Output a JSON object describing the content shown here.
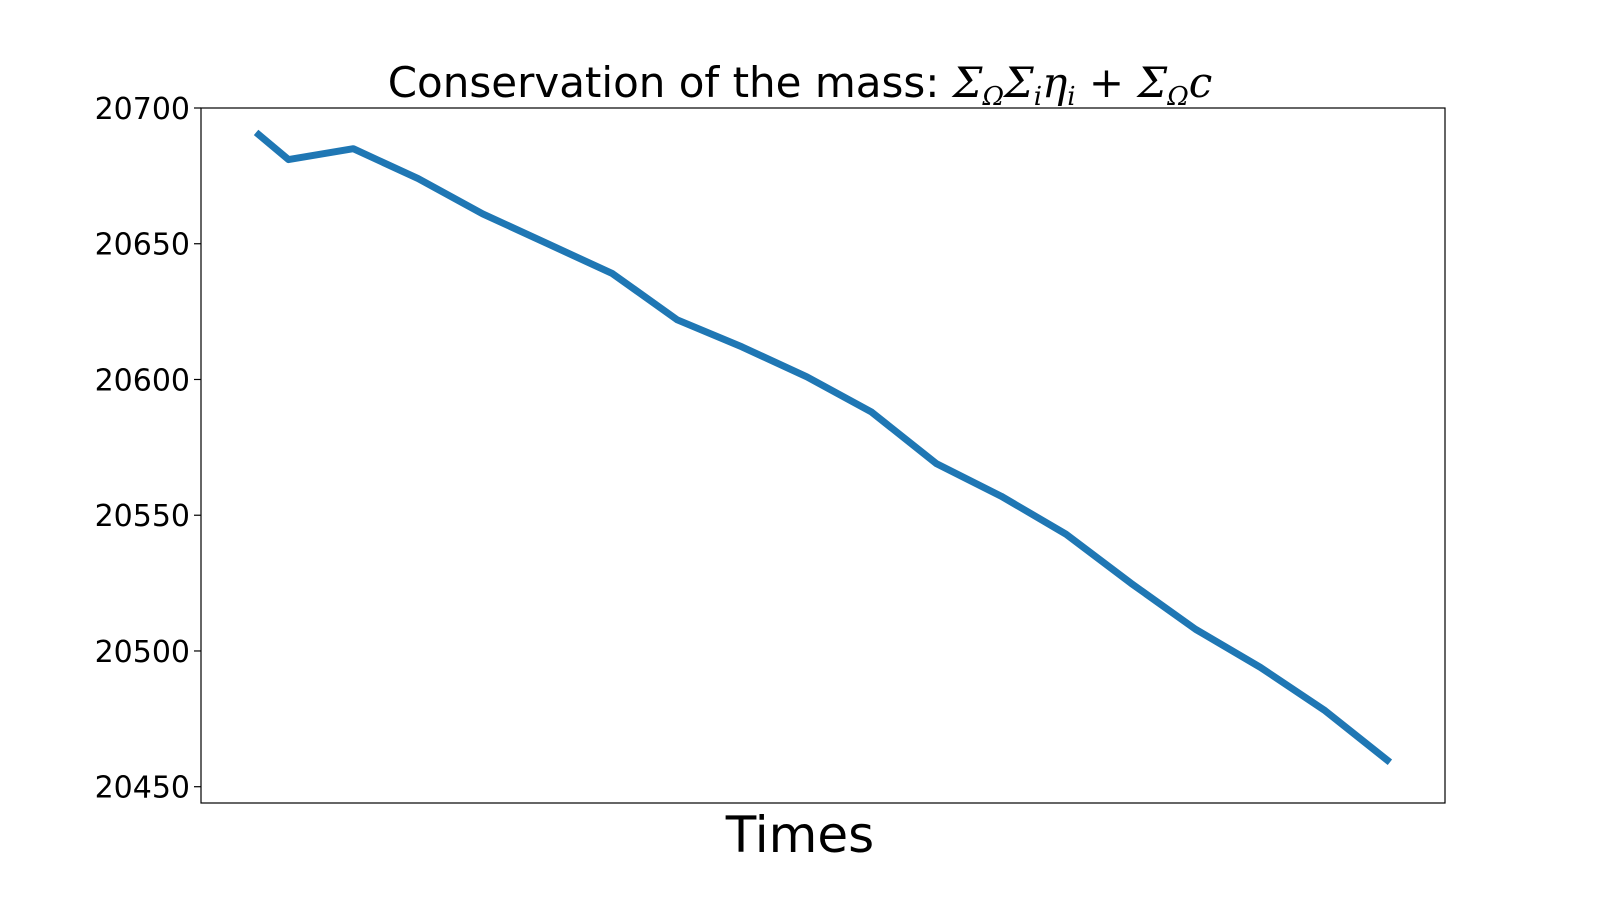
{
  "chart_data": {
    "type": "line",
    "title_text": "Conservation of the mass: ",
    "title_math": {
      "sigma": "Σ",
      "omega_sub": "Ω",
      "i_sub": "i",
      "eta": "η",
      "plus": "+",
      "c": "c"
    },
    "xlabel": "Times",
    "ylabel": "",
    "ylim": [
      20444,
      20700
    ],
    "yticks": [
      "20450",
      "20500",
      "20550",
      "20600",
      "20650",
      "20700"
    ],
    "x": [
      0,
      0.5,
      1.5,
      2.5,
      3.5,
      4.5,
      5.5,
      6.5,
      7.5,
      8.5,
      9.5,
      10.5,
      11.5,
      12.5,
      13.5,
      14.5,
      15.5,
      16.5,
      17.5
    ],
    "xlim": [
      -0.85,
      18.35
    ],
    "series": [
      {
        "color": "#1f77b4",
        "values": [
          20691,
          20681,
          20685,
          20674,
          20661,
          20650,
          20639,
          20622,
          20612,
          20601,
          20588,
          20569,
          20557,
          20543,
          20525,
          20508,
          20494,
          20478,
          20459
        ]
      }
    ],
    "grid": false,
    "legend": "none"
  }
}
